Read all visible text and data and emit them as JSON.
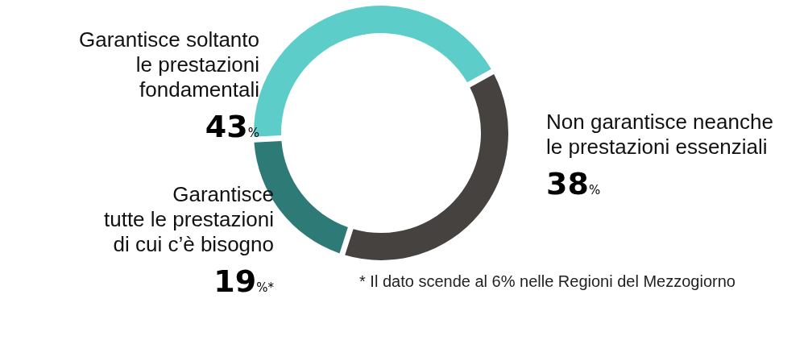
{
  "chart_data": {
    "type": "donut",
    "categories": [
      "Garantisce soltanto\nle prestazioni\nfondamentali",
      "Non garantisce neanche\nle prestazioni essenziali",
      "Garantisce\ntutte le prestazioni\ndi cui c’è bisogno"
    ],
    "values": [
      43,
      38,
      19
    ],
    "colors": [
      "#5ccdc8",
      "#45423f",
      "#2e7a76"
    ],
    "value_labels": [
      "43%",
      "38%",
      "19%*"
    ],
    "annotations": [
      "* Il dato scende al 6% nelle Regioni del Mezzogiorno"
    ]
  }
}
